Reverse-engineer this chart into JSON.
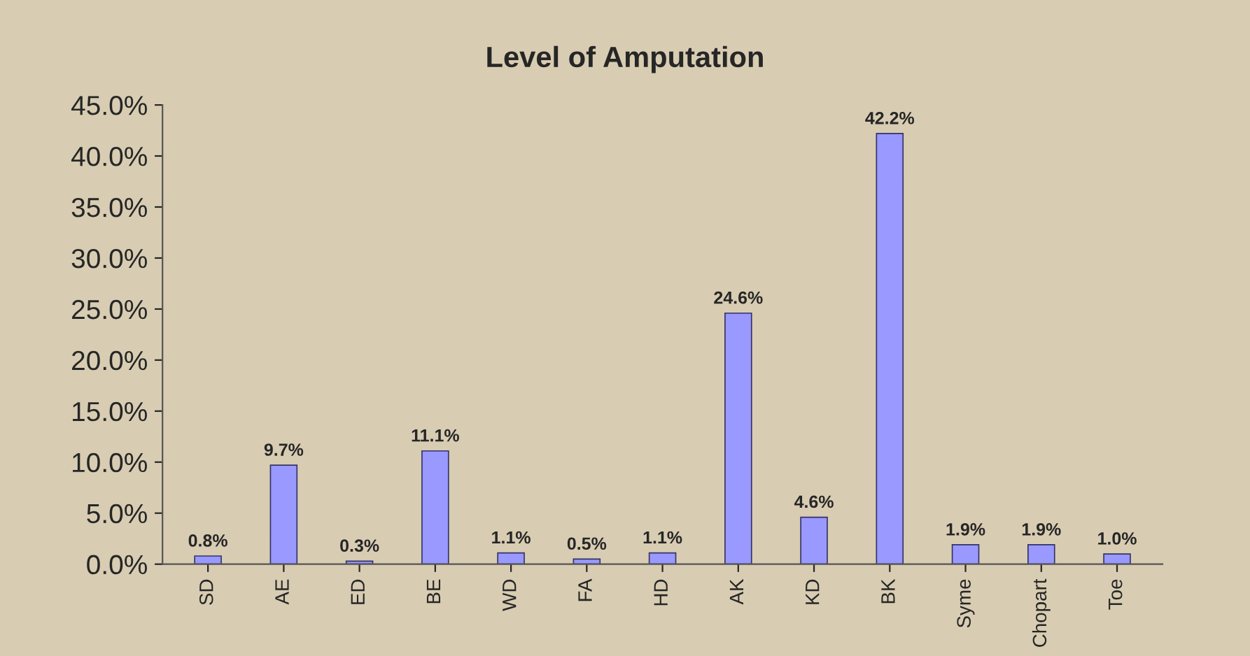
{
  "chart_data": {
    "type": "bar",
    "title": "Level of Amputation",
    "categories": [
      "SD",
      "AE",
      "ED",
      "BE",
      "WD",
      "FA",
      "HD",
      "AK",
      "KD",
      "BK",
      "Syme",
      "Chopart",
      "Toe"
    ],
    "values": [
      0.8,
      9.7,
      0.3,
      11.1,
      1.1,
      0.5,
      1.1,
      24.6,
      4.6,
      42.2,
      1.9,
      1.9,
      1.0
    ],
    "value_labels": [
      "0.8%",
      "9.7%",
      "0.3%",
      "11.1%",
      "1.1%",
      "0.5%",
      "1.1%",
      "24.6%",
      "4.6%",
      "42.2%",
      "1.9%",
      "1.9%",
      "1.0%"
    ],
    "color": "#9999ff",
    "ylim": [
      0,
      45
    ],
    "yticks": [
      {
        "value": 0,
        "label": "0.0%"
      },
      {
        "value": 5,
        "label": "5.0%"
      },
      {
        "value": 10,
        "label": "10.0%"
      },
      {
        "value": 15,
        "label": "15.0%"
      },
      {
        "value": 20,
        "label": "20.0%"
      },
      {
        "value": 25,
        "label": "25.0%"
      },
      {
        "value": 30,
        "label": "30.0%"
      },
      {
        "value": 35,
        "label": "35.0%"
      },
      {
        "value": 40,
        "label": "40.0%"
      },
      {
        "value": 45,
        "label": "45.0%"
      }
    ],
    "grid": false,
    "legend": false
  }
}
